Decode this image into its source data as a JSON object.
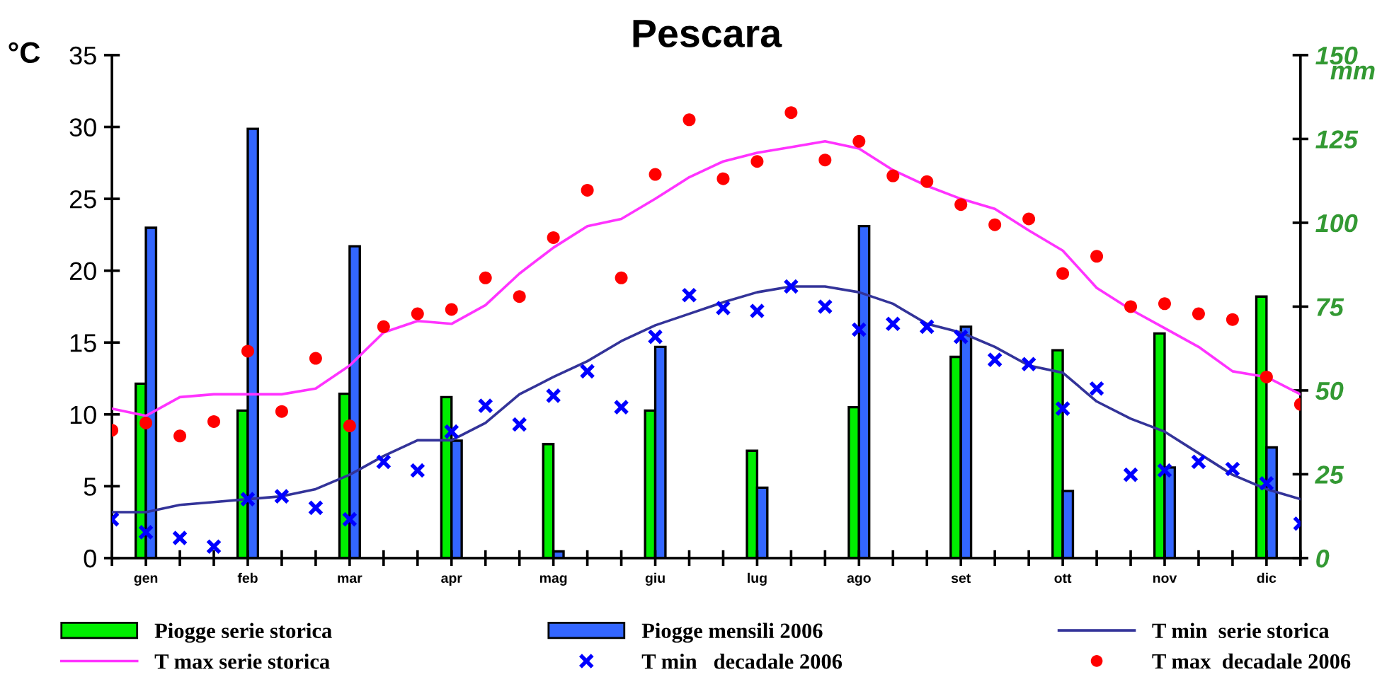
{
  "chart_data": {
    "type": "line",
    "title": "Pescara",
    "ylabel": "°C",
    "y2label": "mm",
    "ylim": [
      0,
      35
    ],
    "yticks": [
      0,
      5,
      10,
      15,
      20,
      25,
      30,
      35
    ],
    "y2lim": [
      0,
      150
    ],
    "y2ticks": [
      0,
      25,
      50,
      75,
      100,
      125,
      150
    ],
    "categories": [
      null,
      "gen",
      null,
      null,
      "feb",
      null,
      null,
      "mar",
      null,
      null,
      "apr",
      null,
      null,
      "mag",
      null,
      null,
      "giu",
      null,
      null,
      "lug",
      null,
      null,
      "ago",
      null,
      null,
      "set",
      null,
      null,
      "ott",
      null,
      null,
      "nov",
      null,
      null,
      "dic",
      null
    ],
    "grid": false,
    "legend": "bottom",
    "series": [
      {
        "name": "Piogge serie storica",
        "type": "bar",
        "axis": "y2",
        "color": "#00ee00",
        "values": [
          null,
          52,
          null,
          null,
          44,
          null,
          null,
          49,
          null,
          null,
          48,
          null,
          null,
          34,
          null,
          null,
          44,
          null,
          null,
          32,
          null,
          null,
          45,
          null,
          null,
          60,
          null,
          null,
          62,
          null,
          null,
          67,
          null,
          null,
          78,
          null
        ]
      },
      {
        "name": "Piogge mensili 2006",
        "type": "bar",
        "axis": "y2",
        "color": "#3366ff",
        "values": [
          null,
          98.5,
          null,
          null,
          128,
          null,
          null,
          93,
          null,
          null,
          35,
          null,
          null,
          2,
          null,
          null,
          63,
          null,
          null,
          21,
          null,
          null,
          99,
          null,
          null,
          69,
          null,
          null,
          20,
          null,
          null,
          27,
          null,
          null,
          33,
          null
        ]
      },
      {
        "name": "T min  serie storica",
        "color": "#333399",
        "marker": "none",
        "values": [
          3.2,
          3.2,
          3.7,
          3.9,
          4.1,
          4.3,
          4.8,
          5.8,
          7.1,
          8.2,
          8.2,
          9.4,
          11.4,
          12.6,
          13.7,
          15.1,
          16.2,
          17.0,
          17.8,
          18.5,
          18.9,
          18.9,
          18.5,
          17.7,
          16.3,
          15.7,
          14.7,
          13.4,
          12.9,
          10.9,
          9.7,
          8.8,
          7.3,
          5.8,
          4.8,
          4.1
        ]
      },
      {
        "name": "T max serie storica",
        "color": "#ff33ff",
        "marker": "none",
        "values": [
          10.4,
          9.9,
          11.2,
          11.4,
          11.4,
          11.4,
          11.8,
          13.4,
          15.7,
          16.5,
          16.3,
          17.6,
          19.8,
          21.6,
          23.1,
          23.6,
          25.0,
          26.5,
          27.6,
          28.2,
          28.6,
          29.0,
          28.5,
          27.0,
          25.9,
          25.0,
          24.3,
          22.8,
          21.4,
          18.8,
          17.3,
          16.0,
          14.7,
          13.0,
          12.6,
          11.4
        ]
      },
      {
        "name": "T min   decadale 2006",
        "type": "scatter",
        "color": "#0000ff",
        "marker": "cross",
        "values": [
          2.7,
          1.8,
          1.4,
          0.8,
          4.1,
          4.3,
          3.5,
          2.7,
          6.7,
          6.1,
          8.8,
          10.6,
          9.3,
          11.3,
          13.0,
          10.5,
          15.4,
          18.3,
          17.4,
          17.2,
          18.9,
          17.5,
          15.9,
          16.3,
          16.1,
          15.4,
          13.8,
          13.5,
          10.4,
          11.8,
          5.8,
          6.1,
          6.7,
          6.2,
          5.2,
          2.4
        ]
      },
      {
        "name": "T max  decadale 2006",
        "type": "scatter",
        "color": "#ff0000",
        "marker": "circle",
        "values": [
          8.9,
          9.4,
          8.5,
          9.5,
          14.4,
          10.2,
          13.9,
          9.2,
          16.1,
          17.0,
          17.3,
          19.5,
          18.2,
          22.3,
          25.6,
          19.5,
          26.7,
          30.5,
          26.4,
          27.6,
          31.0,
          27.7,
          29.0,
          26.6,
          26.2,
          24.6,
          23.2,
          23.6,
          19.8,
          21.0,
          17.5,
          17.7,
          17.0,
          16.6,
          12.6,
          10.7
        ]
      }
    ]
  }
}
